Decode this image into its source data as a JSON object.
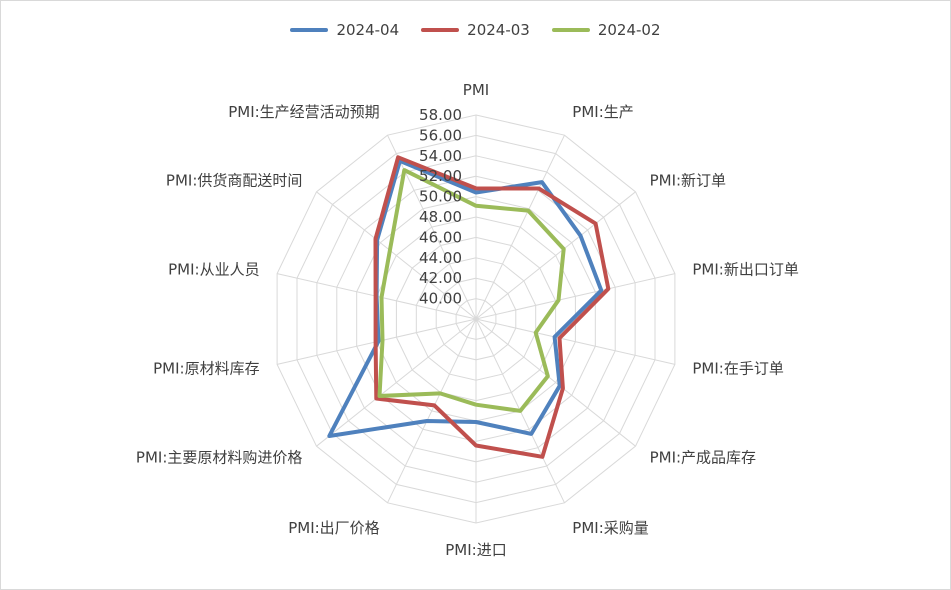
{
  "chart_data": {
    "type": "radar",
    "axes": [
      "PMI",
      "PMI:生产",
      "PMI:新订单",
      "PMI:新出口订单",
      "PMI:在手订单",
      "PMI:产成品库存",
      "PMI:采购量",
      "PMI:进口",
      "PMI:出厂价格",
      "PMI:主要原材料购进价格",
      "PMI:原材料库存",
      "PMI:从业人员",
      "PMI:供货商配送时间",
      "PMI:生产经营活动预期"
    ],
    "rlim": [
      38,
      58
    ],
    "ticks": [
      40.0,
      42.0,
      44.0,
      46.0,
      48.0,
      50.0,
      52.0,
      54.0,
      56.0,
      58.0
    ],
    "tick_labels": [
      "40.00",
      "42.00",
      "44.00",
      "46.00",
      "48.00",
      "50.00",
      "52.00",
      "54.00",
      "56.00",
      "58.00"
    ],
    "grid": true,
    "legend_position": "top",
    "series": [
      {
        "name": "2024-04",
        "color": "#4f81bd",
        "values": [
          50.4,
          52.9,
          51.1,
          50.6,
          45.9,
          48.5,
          50.5,
          48.1,
          49.1,
          56.4,
          47.8,
          48.0,
          50.4,
          55.2
        ]
      },
      {
        "name": "2024-03",
        "color": "#c0504d",
        "values": [
          50.8,
          52.2,
          53.0,
          51.3,
          46.4,
          48.9,
          53.0,
          50.4,
          47.4,
          50.5,
          48.1,
          48.1,
          50.6,
          55.6
        ]
      },
      {
        "name": "2024-02",
        "color": "#9bbb59",
        "values": [
          49.1,
          49.8,
          49.0,
          46.3,
          44.0,
          47.0,
          48.0,
          46.4,
          46.1,
          50.1,
          47.4,
          47.5,
          48.8,
          54.2
        ]
      }
    ]
  }
}
